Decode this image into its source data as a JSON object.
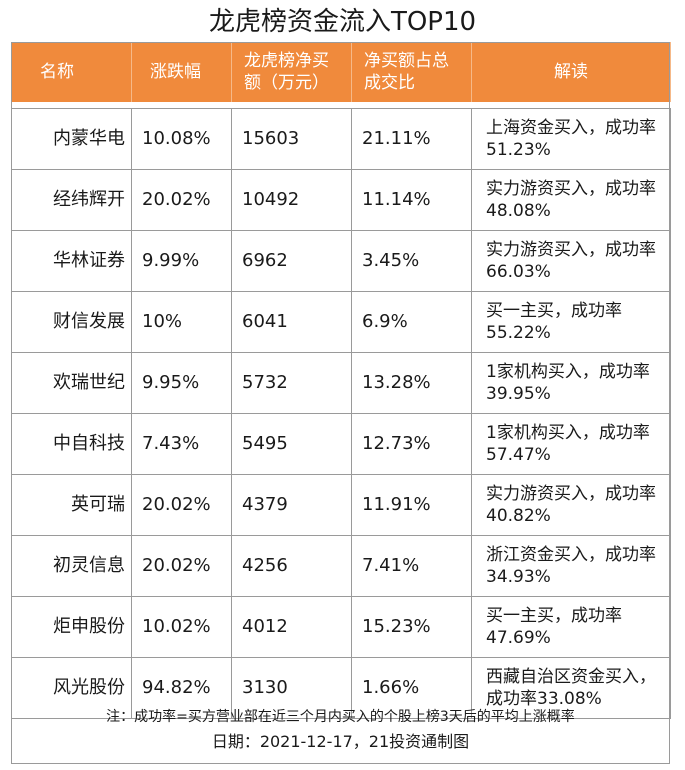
{
  "title": "龙虎榜资金流入TOP10",
  "headers": [
    "名称",
    "涨跌幅",
    "龙虎榜净买额（万元）",
    "净买额占总成交比",
    "解读"
  ],
  "rows": [
    {
      "name": "内蒙华电",
      "change": "10.08%",
      "net_buy": "15603",
      "ratio": "21.11%",
      "note": "上海资金买入，成功率51.23%"
    },
    {
      "name": "经纬辉开",
      "change": "20.02%",
      "net_buy": "10492",
      "ratio": "11.14%",
      "note": "实力游资买入，成功率48.08%"
    },
    {
      "name": "华林证券",
      "change": "9.99%",
      "net_buy": "6962",
      "ratio": "3.45%",
      "note": "实力游资买入，成功率66.03%"
    },
    {
      "name": "财信发展",
      "change": "10%",
      "net_buy": "6041",
      "ratio": "6.9%",
      "note": "买一主买，成功率55.22%"
    },
    {
      "name": "欢瑞世纪",
      "change": "9.95%",
      "net_buy": "5732",
      "ratio": "13.28%",
      "note": "1家机构买入，成功率39.95%"
    },
    {
      "name": "中自科技",
      "change": "7.43%",
      "net_buy": "5495",
      "ratio": "12.73%",
      "note": "1家机构买入，成功率57.47%"
    },
    {
      "name": "英可瑞",
      "change": "20.02%",
      "net_buy": "4379",
      "ratio": "11.91%",
      "note": "实力游资买入，成功率40.82%"
    },
    {
      "name": "初灵信息",
      "change": "20.02%",
      "net_buy": "4256",
      "ratio": "7.41%",
      "note": "浙江资金买入，成功率34.93%"
    },
    {
      "name": "炬申股份",
      "change": "10.02%",
      "net_buy": "4012",
      "ratio": "15.23%",
      "note": "买一主买，成功率47.69%"
    },
    {
      "name": "风光股份",
      "change": "94.82%",
      "net_buy": "3130",
      "ratio": "1.66%",
      "note": "西藏自治区资金买入，成功率33.08%"
    }
  ],
  "footnote": "注：成功率=买方营业部在近三个月内买入的个股上榜3天后的平均上涨概率",
  "date_line": "日期：2021-12-17，21投资通制图",
  "colors": {
    "header_bg": "#f08a3c",
    "header_text": "#ffffff",
    "border": "#9a9a9a"
  }
}
